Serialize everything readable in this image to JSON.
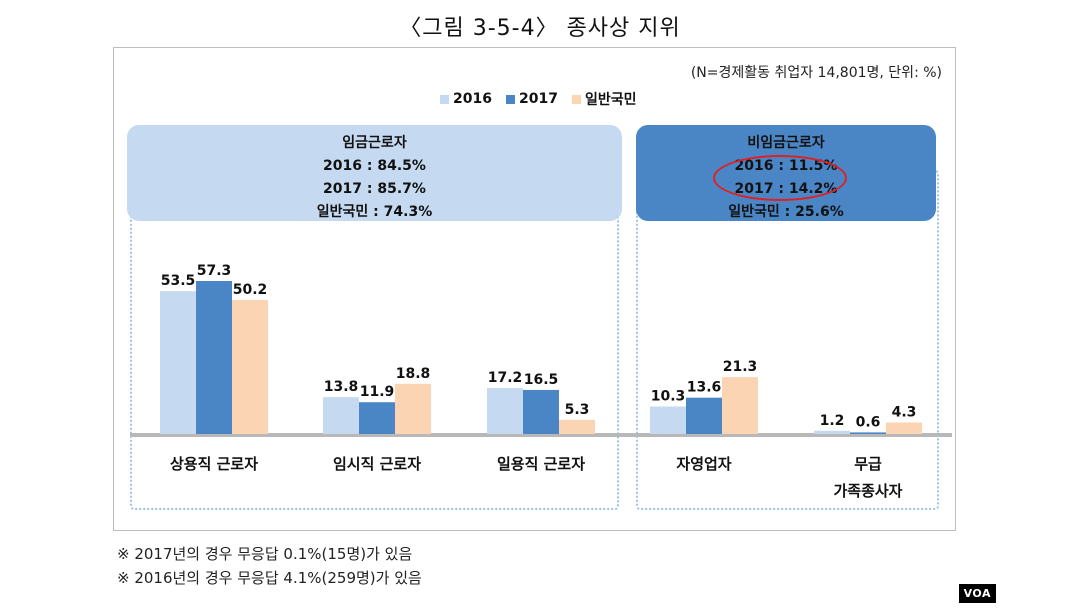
{
  "title": "〈그림 3-5-4〉 종사상 지위",
  "note": "(N=경제활동 취업자 14,801명, 단위: %)",
  "legend": [
    {
      "label": "2016",
      "color": "#c5d9f1"
    },
    {
      "label": "2017",
      "color": "#4a86c5"
    },
    {
      "label": "일반국민",
      "color": "#fbd4b4"
    }
  ],
  "groups": {
    "wage": {
      "title": "임금근로자",
      "lines": [
        "2016 : 84.5%",
        "2017 : 85.7%",
        "일반국민 : 74.3%"
      ]
    },
    "nonwage": {
      "title": "비임금근로자",
      "lines": [
        "2016 : 11.5%",
        "2017 : 14.2%",
        "일반국민 : 25.6%"
      ]
    }
  },
  "chart_data": {
    "type": "bar",
    "categories": [
      "상용직 근로자",
      "임시직 근로자",
      "일용직 근로자",
      "자영업자",
      "무급 가족종사자"
    ],
    "category_lines": [
      [
        "상용직 근로자"
      ],
      [
        "임시직 근로자"
      ],
      [
        "일용직 근로자"
      ],
      [
        "자영업자"
      ],
      [
        "무급",
        "가족종사자"
      ]
    ],
    "series": [
      {
        "name": "2016",
        "values": [
          53.5,
          13.8,
          17.2,
          10.3,
          1.2
        ]
      },
      {
        "name": "2017",
        "values": [
          57.3,
          11.9,
          16.5,
          13.6,
          0.6
        ]
      },
      {
        "name": "일반국민",
        "values": [
          50.2,
          18.8,
          5.3,
          21.3,
          4.3
        ]
      }
    ],
    "ylim": [
      0,
      60
    ],
    "grid": false,
    "legend_position": "top"
  },
  "footnotes": [
    "※ 2017년의 경우 무응답 0.1%(15명)가 있음",
    "※ 2016년의 경우 무응답 4.1%(259명)가 있음"
  ],
  "watermark": "VOA"
}
